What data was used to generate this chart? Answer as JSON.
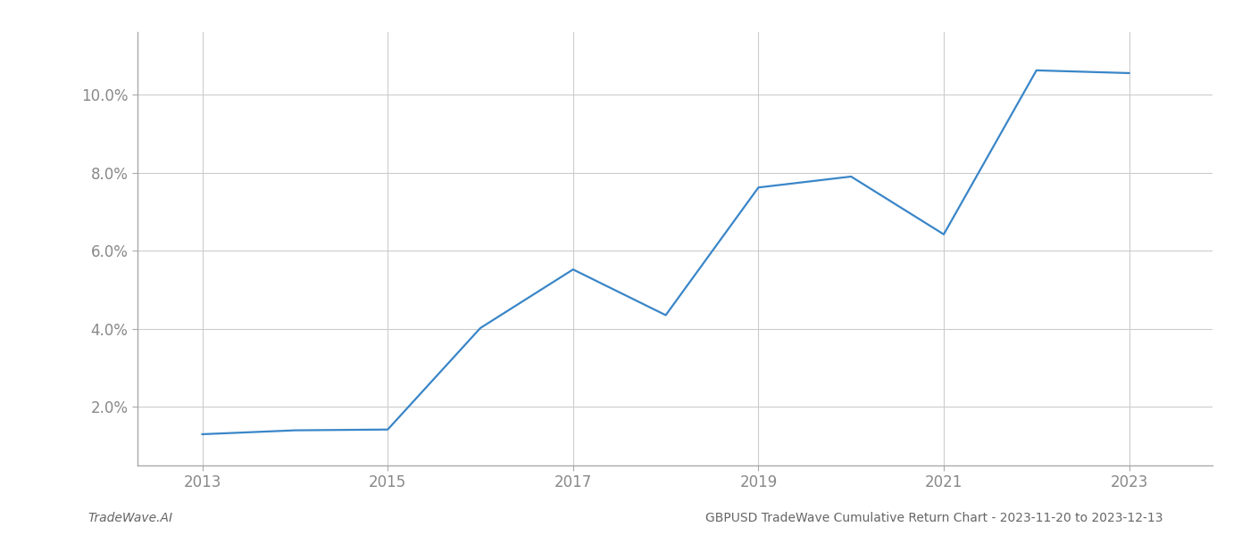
{
  "x_years": [
    2013,
    2014,
    2015,
    2016,
    2017,
    2018,
    2019,
    2020,
    2021,
    2022,
    2023
  ],
  "y_values": [
    1.3,
    1.4,
    1.42,
    4.02,
    5.52,
    4.35,
    7.62,
    7.9,
    6.42,
    10.62,
    10.55
  ],
  "line_color": "#3a86c8",
  "line_width": 1.6,
  "background_color": "#ffffff",
  "grid_color": "#cccccc",
  "title": "GBPUSD TradeWave Cumulative Return Chart - 2023-11-20 to 2023-12-13",
  "footer_left": "TradeWave.AI",
  "xlim": [
    2012.3,
    2023.9
  ],
  "ylim": [
    0.5,
    11.6
  ],
  "yticks": [
    2.0,
    4.0,
    6.0,
    8.0,
    10.0
  ],
  "xticks": [
    2013,
    2015,
    2017,
    2019,
    2021,
    2023
  ],
  "tick_label_color": "#888888",
  "title_fontsize": 11,
  "footer_fontsize": 10,
  "tick_fontsize": 12,
  "spine_color": "#aaaaaa"
}
